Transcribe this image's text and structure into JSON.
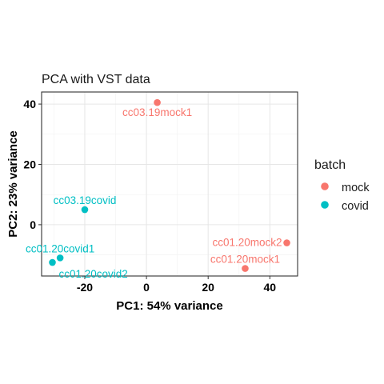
{
  "chart_data": {
    "type": "scatter",
    "title": "PCA with VST data",
    "xlabel": "PC1: 54% variance",
    "ylabel": "PC2: 23% variance",
    "xlim": [
      -34,
      49
    ],
    "ylim": [
      -17,
      44
    ],
    "xticks": [
      -20,
      0,
      20,
      40
    ],
    "yticks": [
      0,
      20,
      40
    ],
    "grid": true,
    "legend": {
      "title": "batch",
      "placement": "right",
      "entries": [
        {
          "name": "mock",
          "color": "#F8766D"
        },
        {
          "name": "covid",
          "color": "#00BFC4"
        }
      ]
    },
    "points": [
      {
        "label": "cc03.19mock1",
        "batch": "mock",
        "x": 3.5,
        "y": 40.5,
        "label_pos": "below"
      },
      {
        "label": "cc01.20mock2",
        "batch": "mock",
        "x": 45.5,
        "y": -6,
        "label_pos": "left"
      },
      {
        "label": "cc01.20mock1",
        "batch": "mock",
        "x": 32,
        "y": -14.5,
        "label_pos": "above"
      },
      {
        "label": "cc03.19covid",
        "batch": "covid",
        "x": -20,
        "y": 5,
        "label_pos": "above"
      },
      {
        "label": "cc01.20covid1",
        "batch": "covid",
        "x": -28,
        "y": -11,
        "label_pos": "above"
      },
      {
        "label": "cc01.20covid2",
        "batch": "covid",
        "x": -30.5,
        "y": -12.5,
        "label_pos": "below-right"
      }
    ]
  }
}
